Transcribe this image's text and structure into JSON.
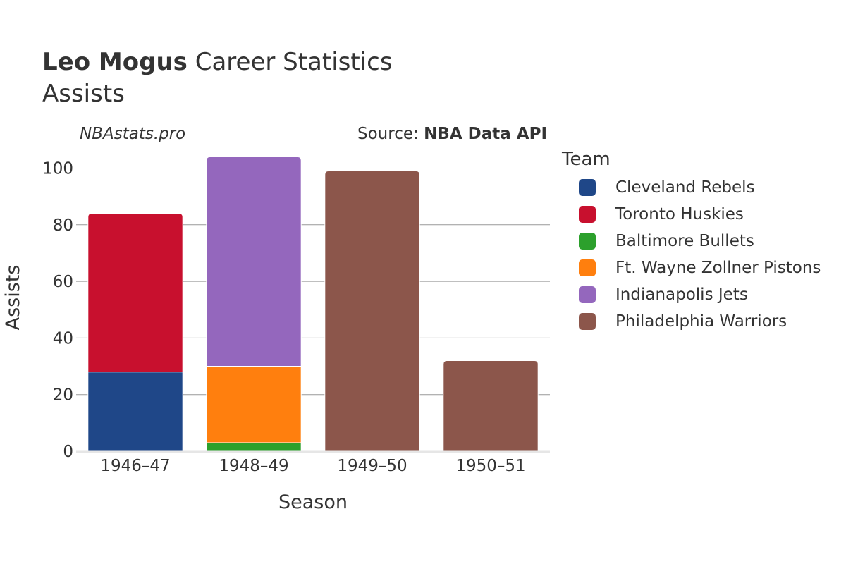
{
  "header": {
    "title_bold": "Leo Mogus",
    "title_rest": " Career Statistics",
    "subtitle": "Assists",
    "brand": "NBAstats.pro",
    "source_prefix": "Source: ",
    "source_name": "NBA Data API"
  },
  "chart_data": {
    "type": "bar",
    "stacked": true,
    "xlabel": "Season",
    "ylabel": "Assists",
    "ylim": [
      0,
      105
    ],
    "yticks": [
      0,
      20,
      40,
      60,
      80,
      100
    ],
    "grid": true,
    "categories": [
      "1946–47",
      "1948–49",
      "1949–50",
      "1950–51"
    ],
    "legend": {
      "title": "Team",
      "position": "right"
    },
    "series": [
      {
        "name": "Cleveland Rebels",
        "color": "#1f4788",
        "values": [
          28,
          0,
          0,
          0
        ]
      },
      {
        "name": "Toronto Huskies",
        "color": "#c8102e",
        "values": [
          56,
          0,
          0,
          0
        ]
      },
      {
        "name": "Baltimore Bullets",
        "color": "#2ca02c",
        "values": [
          0,
          3,
          0,
          0
        ]
      },
      {
        "name": "Ft. Wayne Zollner Pistons",
        "color": "#ff7f0e",
        "values": [
          0,
          27,
          0,
          0
        ]
      },
      {
        "name": "Indianapolis Jets",
        "color": "#9467bd",
        "values": [
          0,
          74,
          0,
          0
        ]
      },
      {
        "name": "Philadelphia Warriors",
        "color": "#8c564b",
        "values": [
          0,
          0,
          99,
          32
        ]
      }
    ]
  }
}
